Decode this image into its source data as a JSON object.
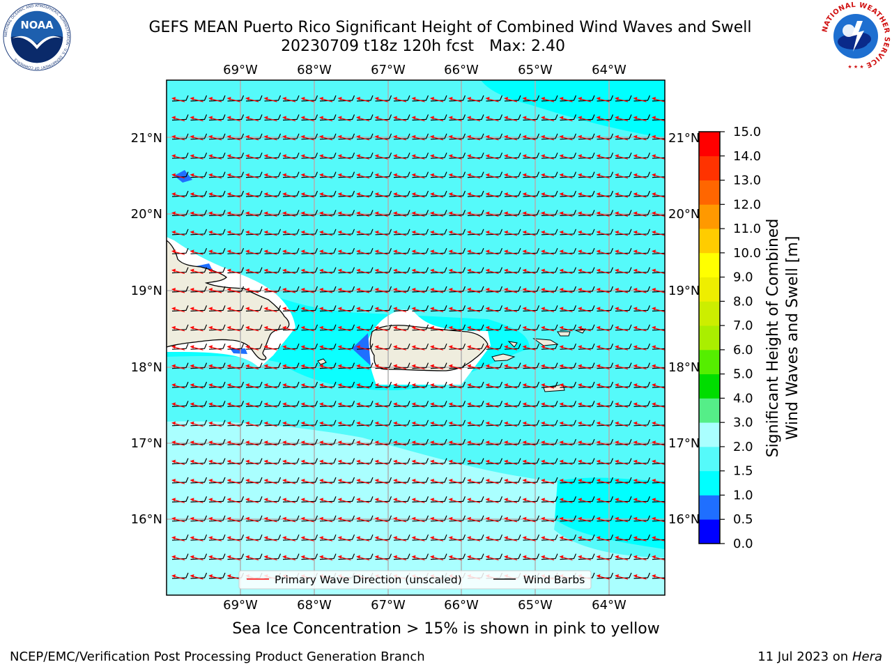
{
  "header": {
    "title": "GEFS MEAN Puerto Rico Significant Height of Combined Wind Waves and Swell",
    "run": "20230709 t18z 120h fcst",
    "max": "Max: 2.40"
  },
  "map": {
    "lon_labels": [
      "69°W",
      "68°W",
      "67°W",
      "66°W",
      "65°W",
      "64°W"
    ],
    "lat_labels": [
      "21°N",
      "20°N",
      "19°N",
      "18°N",
      "17°N",
      "16°N"
    ],
    "legend": {
      "wave_direction": "Primary Wave Direction (unscaled)",
      "wind_barbs": "Wind Barbs"
    },
    "colors": {
      "land": "#efedde",
      "wave_arrow": "#ff0000",
      "wind_barb": "#000000",
      "grid": "#b0b0b0"
    }
  },
  "colorbar": {
    "label_line1": "Significant Height of Combined",
    "label_line2": "Wind Waves and Swell [m]",
    "ticks": [
      "0.0",
      "0.5",
      "1.0",
      "1.5",
      "2.0",
      "3.0",
      "4.0",
      "5.0",
      "6.0",
      "7.0",
      "8.0",
      "9.0",
      "10.0",
      "11.0",
      "12.0",
      "13.0",
      "14.0",
      "15.0"
    ],
    "bin_colors": [
      "#0000ff",
      "#1f6fff",
      "#00ffff",
      "#55fafa",
      "#aaffff",
      "#55ee88",
      "#00dd00",
      "#55ee00",
      "#aaee00",
      "#ccee00",
      "#eeee00",
      "#ffff00",
      "#ffcc00",
      "#ff9900",
      "#ff6600",
      "#ff3300",
      "#ff0000"
    ]
  },
  "subtitle": "Sea Ice Concentration > 15% is shown in pink to yellow",
  "footer": {
    "left": "NCEP/EMC/Verification Post Processing Product Generation Branch",
    "date": "11 Jul 2023 on ",
    "host": "Hera"
  },
  "logos": {
    "noaa_text": "NOAA",
    "noaa_ring": "NATIONAL OCEANIC AND ATMOSPHERIC ADMINISTRATION · U.S. DEPARTMENT OF COMMERCE",
    "nws_ring": "NATIONAL WEATHER SERVICE"
  }
}
